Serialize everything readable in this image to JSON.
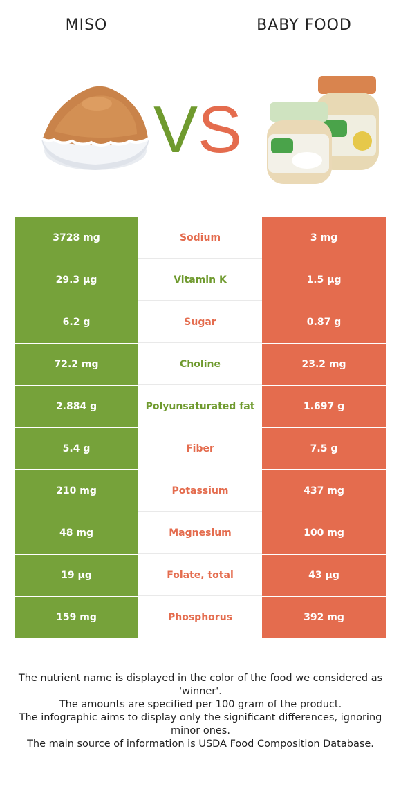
{
  "header": {
    "left_food": "MISO",
    "right_food": "BABY FOOD",
    "vs_v": "V",
    "vs_s": "S"
  },
  "colors": {
    "miso_green": "#76a23a",
    "baby_food_orange": "#e46c4e"
  },
  "rows": [
    {
      "nutrient": "Sodium",
      "left": "3728 mg",
      "right": "3 mg",
      "winner": "baby_food"
    },
    {
      "nutrient": "Vitamin K",
      "left": "29.3 µg",
      "right": "1.5 µg",
      "winner": "miso"
    },
    {
      "nutrient": "Sugar",
      "left": "6.2 g",
      "right": "0.87 g",
      "winner": "baby_food"
    },
    {
      "nutrient": "Choline",
      "left": "72.2 mg",
      "right": "23.2 mg",
      "winner": "miso"
    },
    {
      "nutrient": "Polyunsaturated fat",
      "left": "2.884 g",
      "right": "1.697 g",
      "winner": "miso"
    },
    {
      "nutrient": "Fiber",
      "left": "5.4 g",
      "right": "7.5 g",
      "winner": "baby_food"
    },
    {
      "nutrient": "Potassium",
      "left": "210 mg",
      "right": "437 mg",
      "winner": "baby_food"
    },
    {
      "nutrient": "Magnesium",
      "left": "48 mg",
      "right": "100 mg",
      "winner": "baby_food"
    },
    {
      "nutrient": "Folate, total",
      "left": "19 µg",
      "right": "43 µg",
      "winner": "baby_food"
    },
    {
      "nutrient": "Phosphorus",
      "left": "159 mg",
      "right": "392 mg",
      "winner": "baby_food"
    }
  ],
  "footnote": {
    "line1": "The nutrient name is displayed in the color of the food we considered as 'winner'.",
    "line2": "The amounts are specified per 100 gram of the product.",
    "line3": "The infographic aims to display only the significant differences, ignoring minor ones.",
    "line4": "The main source of information is USDA Food Composition Database."
  }
}
